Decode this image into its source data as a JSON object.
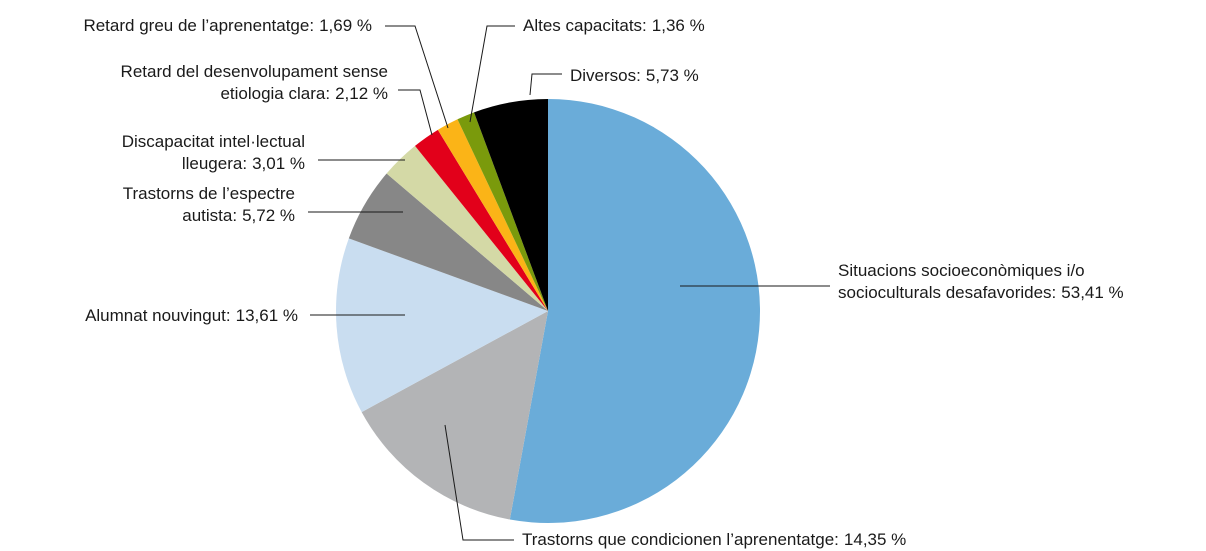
{
  "chart_data": {
    "type": "pie",
    "categories": [
      [
        "Situacions socioeconòmiques i/o",
        "socioculturals desafavorides:"
      ],
      [
        "Trastorns que condicionen l’aprenentatge:"
      ],
      [
        "Alumnat nouvingut:"
      ],
      [
        "Trastorns de l’espectre",
        "autista:"
      ],
      [
        "Discapacitat intel·lectual",
        "lleugera:"
      ],
      [
        "Retard del desenvolupament sense",
        "etiologia clara:"
      ],
      [
        "Retard greu de l’aprenentatge:"
      ],
      [
        "Altes capacitats:"
      ],
      [
        "Diversos:"
      ]
    ],
    "values": [
      53.41,
      14.35,
      13.61,
      5.72,
      3.01,
      2.12,
      1.69,
      1.36,
      5.73
    ],
    "value_labels": [
      "53,41 %",
      "14,35 %",
      "13,61 %",
      "5,72 %",
      "3,01 %",
      "2,12 %",
      "1,69 %",
      "1,36 %",
      "5,73 %"
    ],
    "colors": [
      "#6aacd9",
      "#b3b4b6",
      "#c9ddf0",
      "#878787",
      "#d4d9a6",
      "#e2001a",
      "#fbb417",
      "#7a9a0c",
      "#000000"
    ]
  }
}
